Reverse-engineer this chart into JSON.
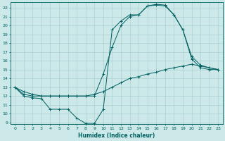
{
  "xlabel": "Humidex (Indice chaleur)",
  "xlim": [
    -0.5,
    23.5
  ],
  "ylim": [
    8.8,
    22.6
  ],
  "yticks": [
    9,
    10,
    11,
    12,
    13,
    14,
    15,
    16,
    17,
    18,
    19,
    20,
    21,
    22
  ],
  "xticks": [
    0,
    1,
    2,
    3,
    4,
    5,
    6,
    7,
    8,
    9,
    10,
    11,
    12,
    13,
    14,
    15,
    16,
    17,
    18,
    19,
    20,
    21,
    22,
    23
  ],
  "bg_color": "#cce8e8",
  "line_color": "#006060",
  "grid_color": "#aad0d0",
  "line1_x": [
    0,
    1,
    2,
    3,
    4,
    5,
    6,
    7,
    8,
    9,
    10,
    11,
    12,
    13,
    14,
    15,
    16,
    17,
    18,
    19,
    20,
    21,
    22,
    23
  ],
  "line1_y": [
    13,
    12,
    11.8,
    11.7,
    10.5,
    10.5,
    10.5,
    9.5,
    8.9,
    8.9,
    10.5,
    19.5,
    20.5,
    21.2,
    21.2,
    22.2,
    22.3,
    22.2,
    21.2,
    19.5,
    16.2,
    15.2,
    15.0,
    15.0
  ],
  "line2_x": [
    0,
    1,
    2,
    3,
    4,
    5,
    6,
    7,
    8,
    9,
    10,
    11,
    12,
    13,
    14,
    15,
    16,
    17,
    18,
    19,
    20,
    21,
    22,
    23
  ],
  "line2_y": [
    13,
    12.2,
    12,
    12,
    12,
    12,
    12,
    12,
    12,
    12,
    14.5,
    17.5,
    20.0,
    21.0,
    21.2,
    22.2,
    22.4,
    22.3,
    21.2,
    19.5,
    16.5,
    15.5,
    15.2,
    15.0
  ],
  "line3_x": [
    0,
    1,
    2,
    3,
    4,
    5,
    6,
    7,
    8,
    9,
    10,
    11,
    12,
    13,
    14,
    15,
    16,
    17,
    18,
    19,
    20,
    21,
    22,
    23
  ],
  "line3_y": [
    13,
    12.5,
    12.2,
    12.0,
    12.0,
    12.0,
    12.0,
    12.0,
    12.0,
    12.2,
    12.5,
    13.0,
    13.5,
    14.0,
    14.2,
    14.5,
    14.7,
    15.0,
    15.2,
    15.4,
    15.6,
    15.4,
    15.2,
    15.0
  ]
}
